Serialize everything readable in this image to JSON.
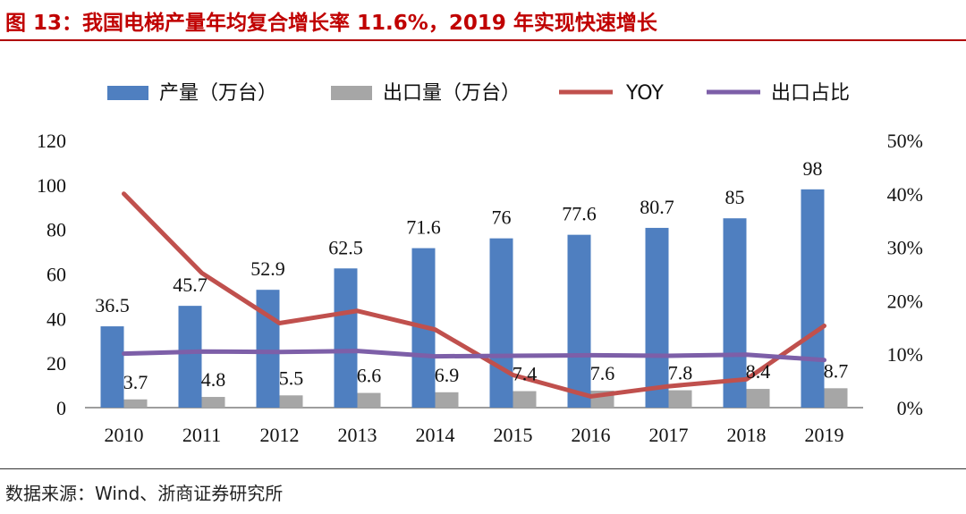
{
  "title": "图 13：我国电梯产量年均复合增长率 11.6%，2019 年实现快速增长",
  "source": "数据来源：Wind、浙商证券研究所",
  "colors": {
    "production": "#4f7fc0",
    "export": "#a6a6a6",
    "yoy": "#c0504d",
    "export_ratio": "#7d5fa8",
    "title": "#c00000"
  },
  "chart_data": {
    "type": "bar",
    "categories": [
      "2010",
      "2011",
      "2012",
      "2013",
      "2014",
      "2015",
      "2016",
      "2017",
      "2018",
      "2019"
    ],
    "series": [
      {
        "name": "产量（万台）",
        "type": "bar",
        "axis": "left",
        "values": [
          36.5,
          45.7,
          52.9,
          62.5,
          71.6,
          76,
          77.6,
          80.7,
          85,
          98
        ],
        "labels": [
          "36.5",
          "45.7",
          "52.9",
          "62.5",
          "71.6",
          "76",
          "77.6",
          "80.7",
          "85",
          "98"
        ]
      },
      {
        "name": "出口量（万台）",
        "type": "bar",
        "axis": "left",
        "values": [
          3.7,
          4.8,
          5.5,
          6.6,
          6.9,
          7.4,
          7.6,
          7.8,
          8.4,
          8.7
        ],
        "labels": [
          "3.7",
          "4.8",
          "5.5",
          "6.6",
          "6.9",
          "7.4",
          "7.6",
          "7.8",
          "8.4",
          "8.7"
        ]
      },
      {
        "name": "YOY",
        "type": "line",
        "axis": "right",
        "values": [
          0.4,
          0.252,
          0.158,
          0.181,
          0.146,
          0.061,
          0.021,
          0.04,
          0.053,
          0.153
        ]
      },
      {
        "name": "出口占比",
        "type": "line",
        "axis": "right",
        "values": [
          0.101,
          0.105,
          0.104,
          0.106,
          0.096,
          0.097,
          0.098,
          0.097,
          0.099,
          0.089
        ]
      }
    ],
    "left_axis": {
      "ylim": [
        0,
        120
      ],
      "ticks": [
        "0",
        "20",
        "40",
        "60",
        "80",
        "100",
        "120"
      ]
    },
    "right_axis": {
      "ylim": [
        0,
        0.5
      ],
      "ticks": [
        "0%",
        "10%",
        "20%",
        "30%",
        "40%",
        "50%"
      ]
    },
    "legend_position": "top"
  }
}
